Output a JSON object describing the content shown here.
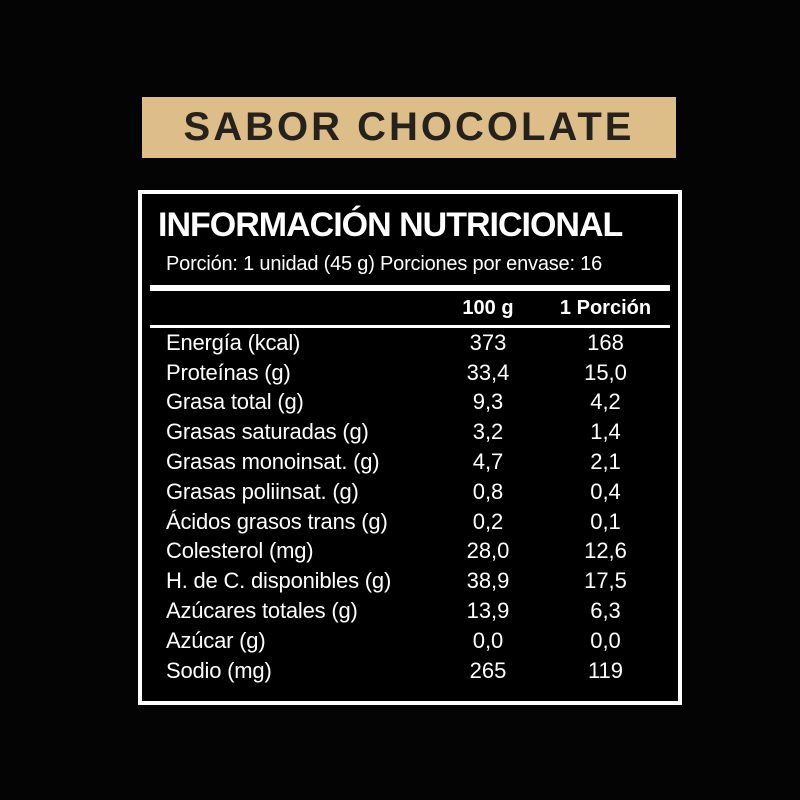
{
  "banner": {
    "label": "SABOR CHOCOLATE"
  },
  "panel": {
    "title": "INFORMACIÓN NUTRICIONAL",
    "serving_line": "Porción: 1 unidad (45 g) Porciones por envase: 16",
    "columns": {
      "per_100g": "100 g",
      "per_portion": "1 Porción"
    },
    "rows": [
      {
        "label": "Energía (kcal)",
        "per_100g": "373",
        "per_portion": "168"
      },
      {
        "label": "Proteínas (g)",
        "per_100g": "33,4",
        "per_portion": "15,0"
      },
      {
        "label": "Grasa total (g)",
        "per_100g": "9,3",
        "per_portion": "4,2"
      },
      {
        "label": "Grasas saturadas (g)",
        "per_100g": "3,2",
        "per_portion": "1,4"
      },
      {
        "label": "Grasas monoinsat. (g)",
        "per_100g": "4,7",
        "per_portion": "2,1"
      },
      {
        "label": "Grasas poliinsat. (g)",
        "per_100g": "0,8",
        "per_portion": "0,4"
      },
      {
        "label": "Ácidos grasos trans (g)",
        "per_100g": "0,2",
        "per_portion": "0,1"
      },
      {
        "label": "Colesterol (mg)",
        "per_100g": "28,0",
        "per_portion": "12,6"
      },
      {
        "label": "H. de C. disponibles (g)",
        "per_100g": "38,9",
        "per_portion": "17,5"
      },
      {
        "label": "Azúcares totales (g)",
        "per_100g": "13,9",
        "per_portion": "6,3"
      },
      {
        "label": "Azúcar (g)",
        "per_100g": "0,0",
        "per_portion": "0,0"
      },
      {
        "label": "Sodio (mg)",
        "per_100g": "265",
        "per_portion": "119"
      }
    ]
  },
  "colors": {
    "background": "#040404",
    "banner_bg": "#ddbe88",
    "banner_text": "#25221e",
    "panel_border": "#ffffff",
    "panel_text": "#ffffff"
  }
}
